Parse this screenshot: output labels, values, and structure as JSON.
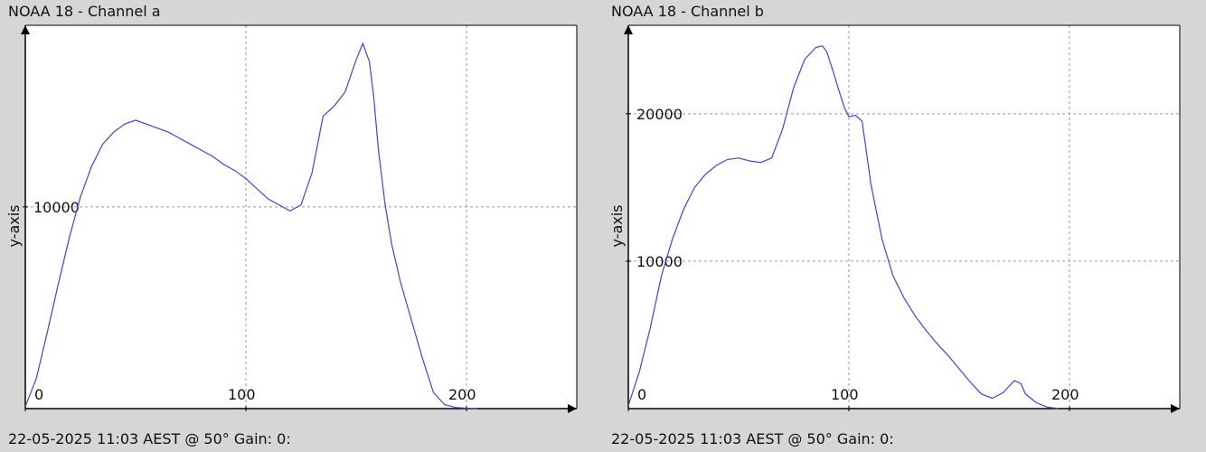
{
  "chart_data": [
    {
      "type": "line",
      "title": "NOAA 18 - Channel a",
      "footer": "22-05-2025 11:03 AEST @ 50° Gain: 0:",
      "ylabel": "y-axis",
      "xlabel": "",
      "xlim": [
        0,
        250
      ],
      "ylim": [
        0,
        19000
      ],
      "xticks": [
        0,
        100,
        200
      ],
      "yticks": [
        10000
      ],
      "grid": true,
      "series": [
        {
          "color": "#4444cc",
          "x": [
            0,
            5,
            10,
            15,
            20,
            25,
            30,
            35,
            40,
            45,
            50,
            55,
            60,
            65,
            70,
            75,
            80,
            85,
            90,
            95,
            100,
            105,
            110,
            115,
            120,
            125,
            130,
            135,
            140,
            145,
            150,
            153,
            156,
            158,
            160,
            163,
            166,
            170,
            175,
            180,
            185,
            190,
            195,
            200,
            205
          ],
          "y": [
            100,
            1500,
            3800,
            6200,
            8500,
            10500,
            12000,
            13100,
            13700,
            14100,
            14300,
            14100,
            13900,
            13700,
            13400,
            13100,
            12800,
            12500,
            12100,
            11800,
            11400,
            10900,
            10400,
            10100,
            9800,
            10100,
            11700,
            14500,
            15000,
            15700,
            17300,
            18100,
            17200,
            15400,
            12900,
            10200,
            8200,
            6300,
            4400,
            2500,
            800,
            200,
            60,
            20,
            0
          ]
        }
      ]
    },
    {
      "type": "line",
      "title": "NOAA 18 - Channel b",
      "footer": "22-05-2025 11:03 AEST @ 50° Gain: 0:",
      "ylabel": "y-axis",
      "xlabel": "",
      "xlim": [
        0,
        250
      ],
      "ylim": [
        0,
        26000
      ],
      "xticks": [
        0,
        100,
        200
      ],
      "yticks": [
        10000,
        20000
      ],
      "grid": true,
      "series": [
        {
          "color": "#4444cc",
          "x": [
            0,
            5,
            10,
            15,
            20,
            25,
            30,
            35,
            40,
            45,
            50,
            55,
            60,
            65,
            70,
            75,
            80,
            85,
            88,
            90,
            93,
            95,
            98,
            100,
            103,
            106,
            110,
            115,
            120,
            125,
            130,
            135,
            140,
            145,
            150,
            155,
            160,
            165,
            170,
            175,
            178,
            180,
            185,
            190,
            195
          ],
          "y": [
            200,
            2500,
            5500,
            9000,
            11500,
            13500,
            15000,
            15900,
            16500,
            16900,
            17000,
            16800,
            16700,
            17000,
            19000,
            21800,
            23700,
            24500,
            24600,
            24200,
            22800,
            21800,
            20400,
            19800,
            19900,
            19500,
            15200,
            11500,
            9000,
            7500,
            6300,
            5300,
            4400,
            3600,
            2700,
            1800,
            1000,
            700,
            1100,
            1900,
            1700,
            1000,
            400,
            100,
            0
          ]
        }
      ]
    }
  ]
}
